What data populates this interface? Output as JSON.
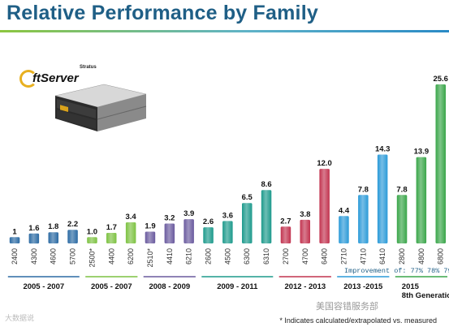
{
  "page": {
    "title": "Relative Performance by Family",
    "logo_small": "Stratus",
    "logo_brand": "ftServer",
    "footnote": "* Indicates calculated/extrapolated vs. measured",
    "improvement_note": "Improvement of: 77%  78%  79%",
    "watermark_left": "大数据说",
    "watermark_right": "美国容错服务部"
  },
  "chart_data": {
    "type": "bar",
    "title": "Relative Performance by Family",
    "xlabel": "",
    "ylabel": "",
    "ylim": [
      0,
      26
    ],
    "grid": false,
    "legend": "none",
    "groups": [
      {
        "name": "2005 - 2007",
        "color": "#2b6aa3",
        "categories": [
          "2400",
          "4300",
          "4600",
          "5700"
        ],
        "values": [
          1,
          1.6,
          1.8,
          2.2
        ],
        "labels": [
          "1",
          "1.6",
          "1.8",
          "2.2"
        ]
      },
      {
        "name": "2005 - 2007",
        "color": "#7dc242",
        "categories": [
          "2500*",
          "4400",
          "6200"
        ],
        "values": [
          1.0,
          1.7,
          3.4
        ],
        "labels": [
          "1.0",
          "1.7",
          "3.4"
        ]
      },
      {
        "name": "2008 - 2009",
        "color": "#6a5a9e",
        "categories": [
          "2510*",
          "4410",
          "6210"
        ],
        "values": [
          1.9,
          3.2,
          3.9
        ],
        "labels": [
          "1.9",
          "3.2",
          "3.9"
        ]
      },
      {
        "name": "2009 - 2011",
        "color": "#1d9a8c",
        "categories": [
          "2600",
          "4500",
          "6300",
          "6310"
        ],
        "values": [
          2.6,
          3.6,
          6.5,
          8.6
        ],
        "labels": [
          "2.6",
          "3.6",
          "6.5",
          "8.6"
        ]
      },
      {
        "name": "2012 - 2013",
        "color": "#c2334f",
        "categories": [
          "2700",
          "4700",
          "6400"
        ],
        "values": [
          2.7,
          3.8,
          12.0
        ],
        "labels": [
          "2.7",
          "3.8",
          "12.0"
        ]
      },
      {
        "name": "2013 -2015",
        "color": "#2a9ad8",
        "categories": [
          "2710",
          "4710",
          "6410"
        ],
        "values": [
          4.4,
          7.8,
          14.3
        ],
        "labels": [
          "4.4",
          "7.8",
          "14.3"
        ]
      },
      {
        "name": "2015",
        "subname": "8th Generation",
        "color": "#3aa64a",
        "categories": [
          "2800",
          "4800",
          "6800"
        ],
        "values": [
          7.8,
          13.9,
          25.6
        ],
        "labels": [
          "7.8",
          "13.9",
          "25.6"
        ]
      }
    ]
  }
}
